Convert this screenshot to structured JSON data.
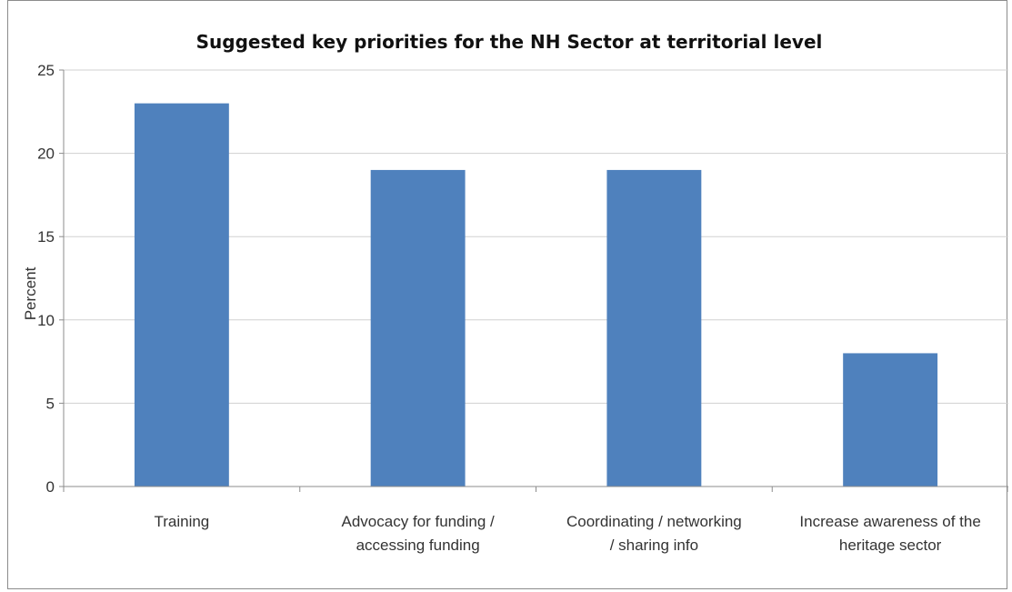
{
  "chart_data": {
    "type": "bar",
    "title": "Suggested key priorities for the NH Sector at territorial level",
    "xlabel": "",
    "ylabel": "Percent",
    "ylim": [
      0,
      25
    ],
    "yticks": [
      0,
      5,
      10,
      15,
      20,
      25
    ],
    "grid": true,
    "legend": "none",
    "categories": [
      [
        "Training"
      ],
      [
        "Advocacy for funding /",
        "accessing funding"
      ],
      [
        "Coordinating / networking",
        "/ sharing info"
      ],
      [
        "Increase awareness of the",
        "heritage sector"
      ]
    ],
    "values": [
      23,
      19,
      19,
      8
    ],
    "colors": {
      "bar": "#4f81bd",
      "grid": "#d0d0d0",
      "axis": "#8c8c8c"
    }
  }
}
